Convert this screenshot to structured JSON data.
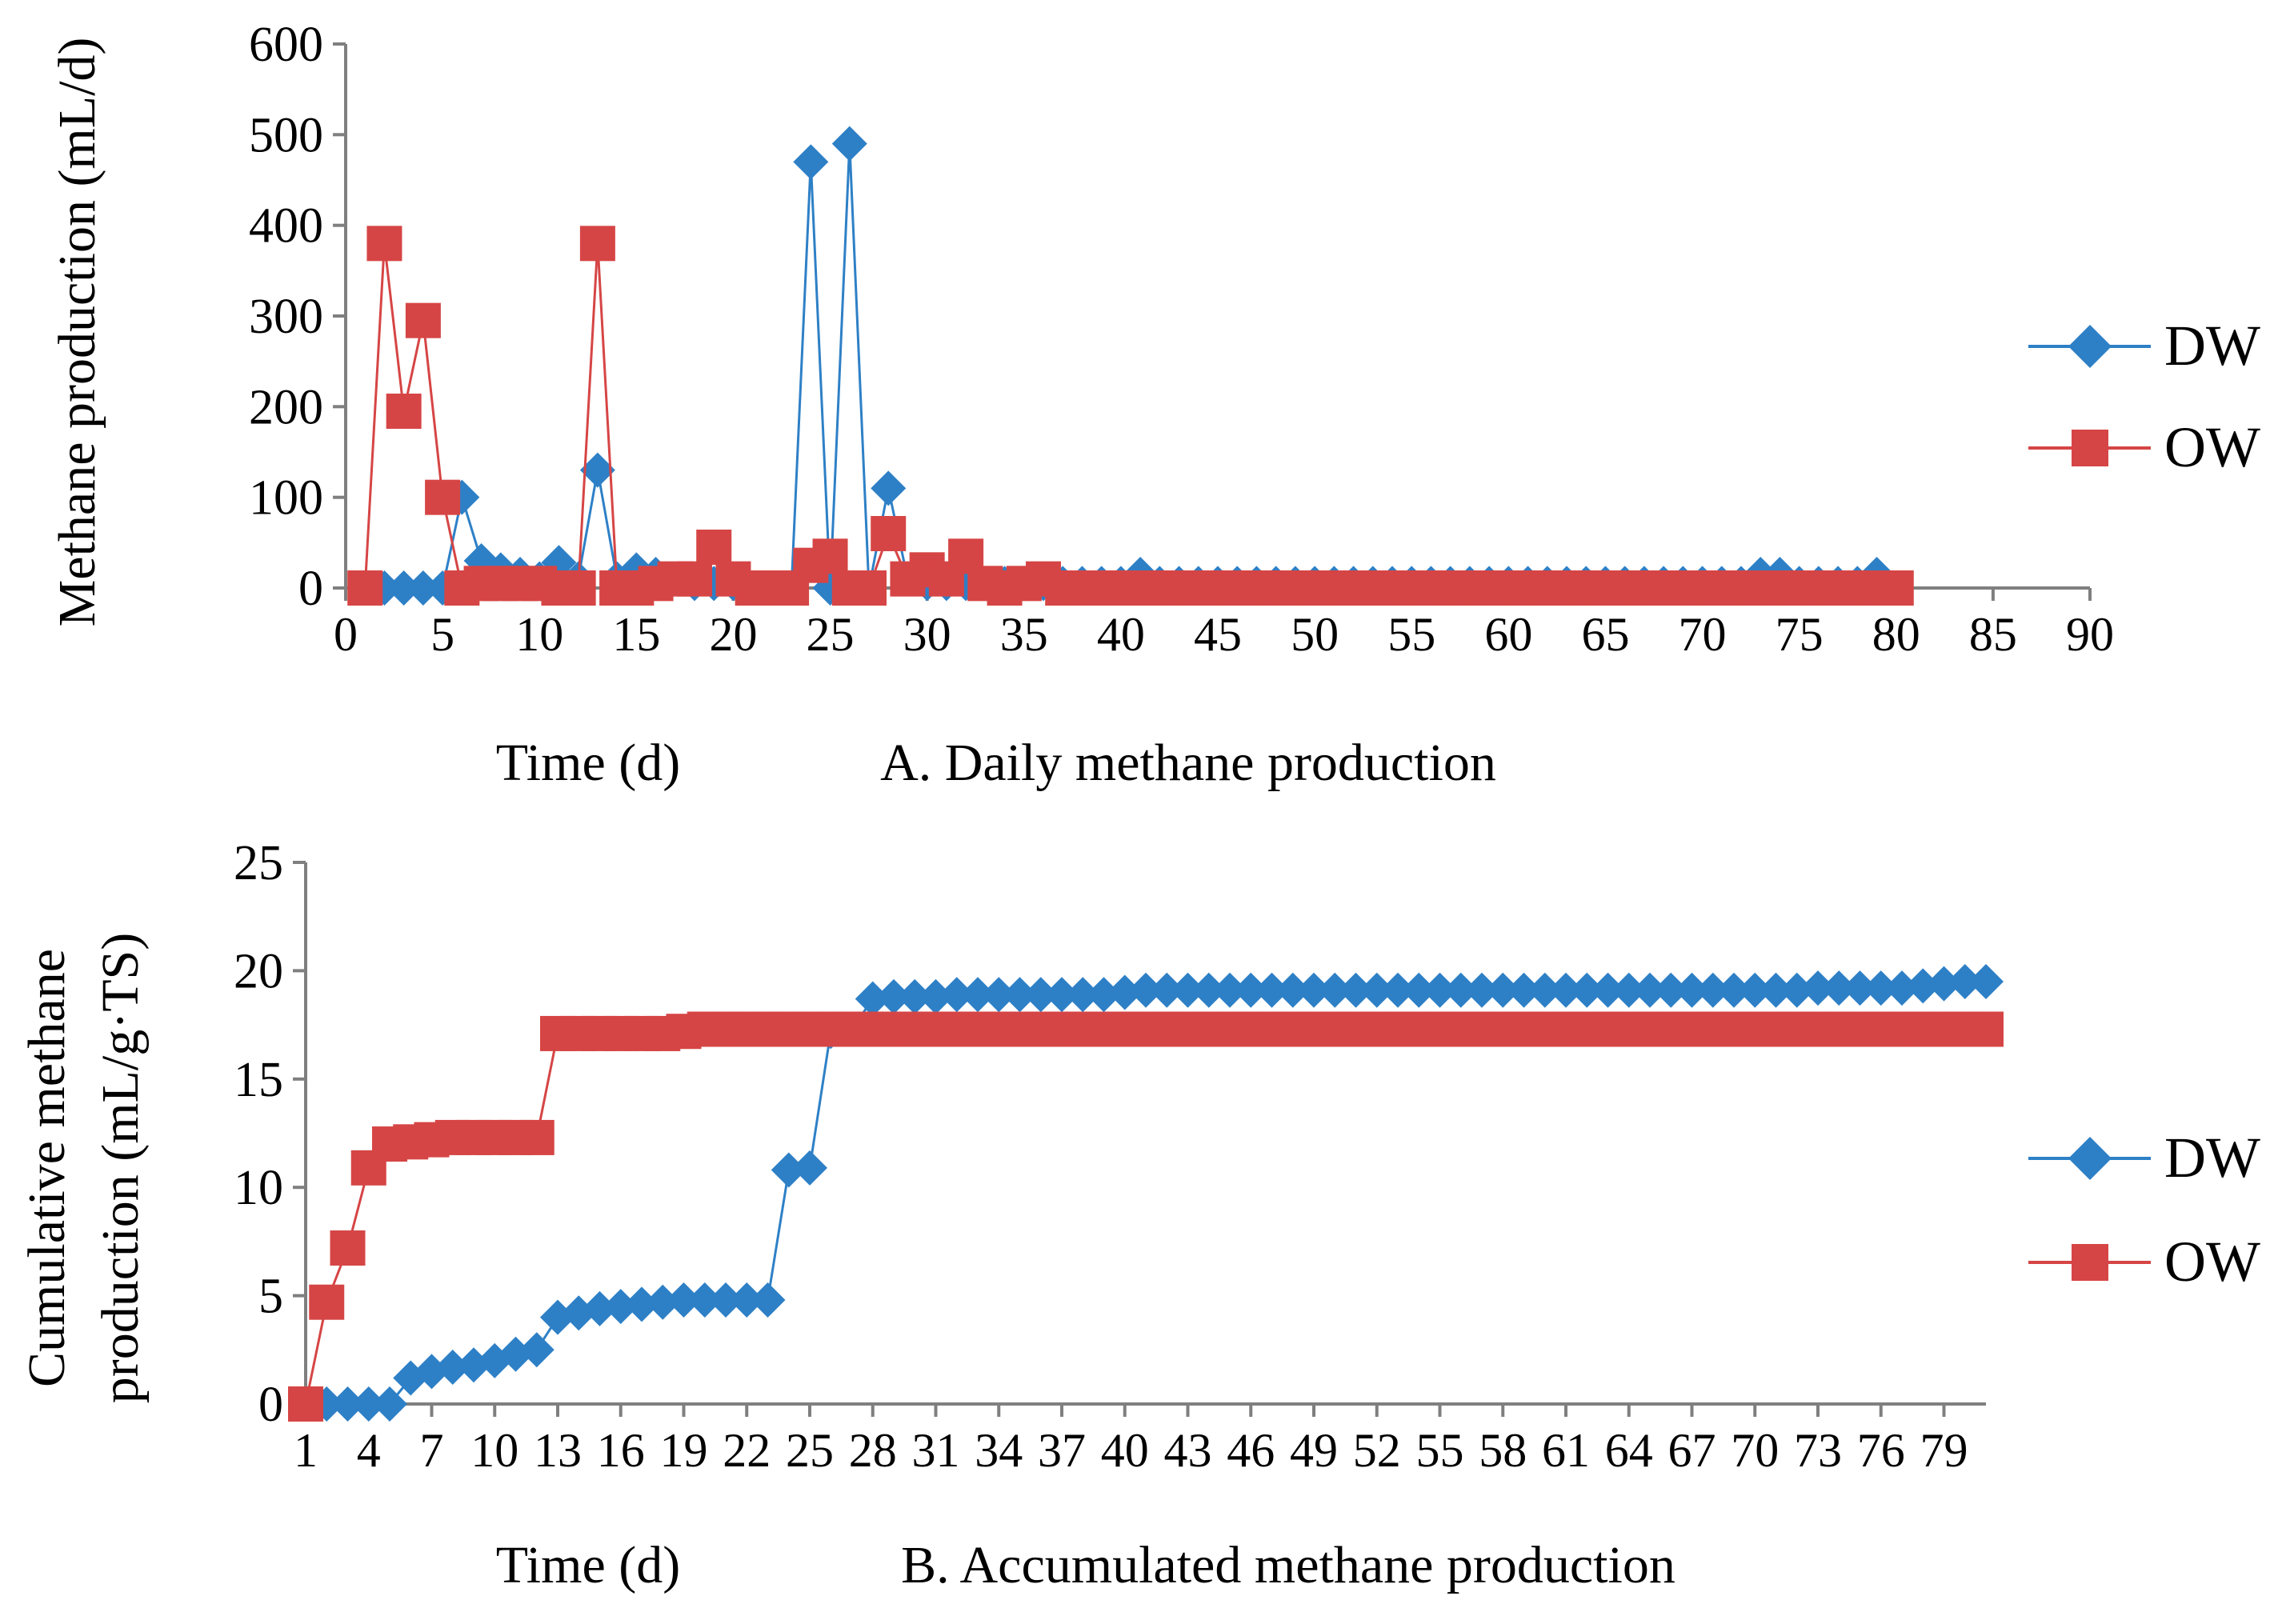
{
  "colors": {
    "dw": "#2e80c6",
    "ow": "#d64545",
    "axis": "#7f7f7f"
  },
  "chart_data": [
    {
      "id": "A",
      "type": "line",
      "title": "A. Daily methane production",
      "xlabel": "Time (d)",
      "ylabel": "Methane production (mL/d)",
      "xlim": [
        0,
        90
      ],
      "ylim": [
        0,
        600
      ],
      "x_ticks": [
        "0",
        "5",
        "10",
        "15",
        "20",
        "25",
        "30",
        "35",
        "40",
        "45",
        "50",
        "55",
        "60",
        "65",
        "70",
        "75",
        "80",
        "85",
        "90"
      ],
      "y_ticks": [
        "0",
        "100",
        "200",
        "300",
        "400",
        "500",
        "600"
      ],
      "legend": [
        "DW",
        "OW"
      ],
      "legend_position": "right",
      "series": [
        {
          "name": "DW",
          "marker": "diamond",
          "x": [
            1,
            2,
            3,
            4,
            5,
            6,
            7,
            8,
            9,
            10,
            11,
            12,
            13,
            14,
            15,
            16,
            17,
            18,
            19,
            20,
            21,
            22,
            23,
            24,
            25,
            26,
            27,
            28,
            29,
            30,
            31,
            32,
            33,
            34,
            35,
            36,
            37,
            38,
            39,
            40,
            41,
            42,
            43,
            44,
            45,
            46,
            47,
            48,
            49,
            50,
            51,
            52,
            53,
            54,
            55,
            56,
            57,
            58,
            59,
            60,
            61,
            62,
            63,
            64,
            65,
            66,
            67,
            68,
            69,
            70,
            71,
            72,
            73,
            74,
            75,
            76,
            77,
            78,
            79,
            80
          ],
          "y": [
            0,
            0,
            0,
            0,
            0,
            100,
            30,
            20,
            15,
            10,
            28,
            10,
            130,
            10,
            20,
            15,
            10,
            5,
            5,
            5,
            0,
            0,
            0,
            470,
            0,
            490,
            0,
            110,
            10,
            5,
            5,
            5,
            5,
            5,
            5,
            5,
            5,
            5,
            5,
            5,
            15,
            5,
            5,
            5,
            5,
            5,
            5,
            5,
            5,
            5,
            5,
            5,
            5,
            5,
            5,
            5,
            5,
            5,
            5,
            5,
            5,
            5,
            5,
            5,
            5,
            5,
            5,
            5,
            5,
            5,
            5,
            5,
            15,
            15,
            5,
            5,
            5,
            5,
            15,
            0
          ]
        },
        {
          "name": "OW",
          "marker": "square",
          "x": [
            1,
            2,
            3,
            4,
            5,
            6,
            7,
            8,
            9,
            10,
            11,
            12,
            13,
            14,
            15,
            16,
            17,
            18,
            19,
            20,
            21,
            22,
            23,
            24,
            25,
            26,
            27,
            28,
            29,
            30,
            31,
            32,
            33,
            34,
            35,
            36,
            37,
            38,
            39,
            40,
            41,
            42,
            43,
            44,
            45,
            46,
            47,
            48,
            49,
            50,
            51,
            52,
            53,
            54,
            55,
            56,
            57,
            58,
            59,
            60,
            61,
            62,
            63,
            64,
            65,
            66,
            67,
            68,
            69,
            70,
            71,
            72,
            73,
            74,
            75,
            76,
            77,
            78,
            79,
            80
          ],
          "y": [
            0,
            380,
            195,
            295,
            100,
            0,
            5,
            5,
            5,
            5,
            0,
            0,
            380,
            0,
            0,
            5,
            10,
            10,
            45,
            10,
            0,
            0,
            0,
            25,
            35,
            0,
            0,
            60,
            10,
            20,
            10,
            35,
            5,
            0,
            5,
            10,
            0,
            0,
            0,
            0,
            0,
            0,
            0,
            0,
            0,
            0,
            0,
            0,
            0,
            0,
            0,
            0,
            0,
            0,
            0,
            0,
            0,
            0,
            0,
            0,
            0,
            0,
            0,
            0,
            0,
            0,
            0,
            0,
            0,
            0,
            0,
            0,
            0,
            0,
            0,
            0,
            0,
            0,
            0,
            0
          ]
        }
      ]
    },
    {
      "id": "B",
      "type": "line",
      "title": "B. Accumulated methane production",
      "xlabel": "Time (d)",
      "ylabel": "Cumulative methane production (mL/g·TS)",
      "ylabel_line1": "Cumulative  methane",
      "ylabel_line2": "production (mL/g·TS)",
      "xlim": [
        1,
        81
      ],
      "ylim": [
        0,
        25
      ],
      "x_ticks": [
        "1",
        "4",
        "7",
        "10",
        "13",
        "16",
        "19",
        "22",
        "25",
        "28",
        "31",
        "34",
        "37",
        "40",
        "43",
        "46",
        "49",
        "52",
        "55",
        "58",
        "61",
        "64",
        "67",
        "70",
        "73",
        "76",
        "79"
      ],
      "y_ticks": [
        "0",
        "5",
        "10",
        "15",
        "20",
        "25"
      ],
      "legend": [
        "DW",
        "OW"
      ],
      "legend_position": "right",
      "series": [
        {
          "name": "DW",
          "marker": "diamond",
          "x": [
            1,
            2,
            3,
            4,
            5,
            6,
            7,
            8,
            9,
            10,
            11,
            12,
            13,
            14,
            15,
            16,
            17,
            18,
            19,
            20,
            21,
            22,
            23,
            24,
            25,
            26,
            27,
            28,
            29,
            30,
            31,
            32,
            33,
            34,
            35,
            36,
            37,
            38,
            39,
            40,
            41,
            42,
            43,
            44,
            45,
            46,
            47,
            48,
            49,
            50,
            51,
            52,
            53,
            54,
            55,
            56,
            57,
            58,
            59,
            60,
            61,
            62,
            63,
            64,
            65,
            66,
            67,
            68,
            69,
            70,
            71,
            72,
            73,
            74,
            75,
            76,
            77,
            78,
            79,
            80,
            81
          ],
          "y": [
            0,
            0,
            0,
            0,
            0,
            1.2,
            1.5,
            1.7,
            1.8,
            2.0,
            2.3,
            2.5,
            4.0,
            4.2,
            4.4,
            4.5,
            4.6,
            4.7,
            4.8,
            4.8,
            4.8,
            4.8,
            4.8,
            10.8,
            10.9,
            17.2,
            17.3,
            18.7,
            18.8,
            18.8,
            18.8,
            18.9,
            18.9,
            18.9,
            18.9,
            18.9,
            18.9,
            18.9,
            18.9,
            19.0,
            19.1,
            19.1,
            19.1,
            19.1,
            19.1,
            19.1,
            19.1,
            19.1,
            19.1,
            19.1,
            19.1,
            19.1,
            19.1,
            19.1,
            19.1,
            19.1,
            19.1,
            19.1,
            19.1,
            19.1,
            19.1,
            19.1,
            19.1,
            19.1,
            19.1,
            19.1,
            19.1,
            19.1,
            19.1,
            19.1,
            19.1,
            19.1,
            19.2,
            19.2,
            19.2,
            19.2,
            19.2,
            19.3,
            19.4,
            19.5,
            19.5
          ]
        },
        {
          "name": "OW",
          "marker": "square",
          "x": [
            1,
            2,
            3,
            4,
            5,
            6,
            7,
            8,
            9,
            10,
            11,
            12,
            13,
            14,
            15,
            16,
            17,
            18,
            19,
            20,
            21,
            22,
            23,
            24,
            25,
            26,
            27,
            28,
            29,
            30,
            31,
            32,
            33,
            34,
            35,
            36,
            37,
            38,
            39,
            40,
            41,
            42,
            43,
            44,
            45,
            46,
            47,
            48,
            49,
            50,
            51,
            52,
            53,
            54,
            55,
            56,
            57,
            58,
            59,
            60,
            61,
            62,
            63,
            64,
            65,
            66,
            67,
            68,
            69,
            70,
            71,
            72,
            73,
            74,
            75,
            76,
            77,
            78,
            79,
            80,
            81
          ],
          "y": [
            0,
            4.7,
            7.2,
            10.9,
            12.0,
            12.1,
            12.2,
            12.3,
            12.3,
            12.3,
            12.3,
            12.3,
            17.1,
            17.1,
            17.1,
            17.1,
            17.1,
            17.1,
            17.2,
            17.3,
            17.3,
            17.3,
            17.3,
            17.3,
            17.3,
            17.3,
            17.3,
            17.3,
            17.3,
            17.3,
            17.3,
            17.3,
            17.3,
            17.3,
            17.3,
            17.3,
            17.3,
            17.3,
            17.3,
            17.3,
            17.3,
            17.3,
            17.3,
            17.3,
            17.3,
            17.3,
            17.3,
            17.3,
            17.3,
            17.3,
            17.3,
            17.3,
            17.3,
            17.3,
            17.3,
            17.3,
            17.3,
            17.3,
            17.3,
            17.3,
            17.3,
            17.3,
            17.3,
            17.3,
            17.3,
            17.3,
            17.3,
            17.3,
            17.3,
            17.3,
            17.3,
            17.3,
            17.3,
            17.3,
            17.3,
            17.3,
            17.3,
            17.3,
            17.3,
            17.3,
            17.3
          ]
        }
      ]
    }
  ]
}
